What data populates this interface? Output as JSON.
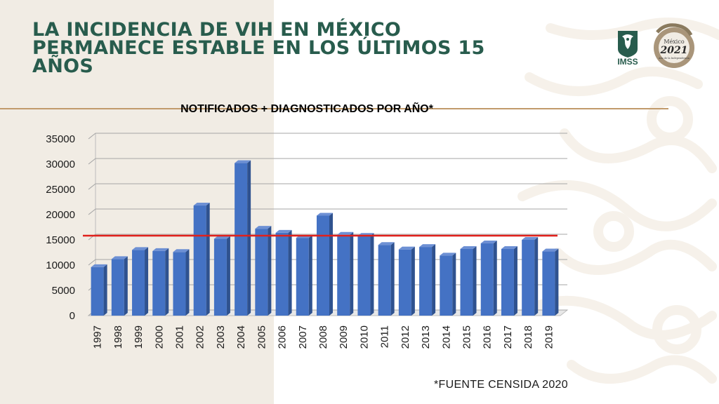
{
  "slide": {
    "title": "LA INCIDENCIA DE VIH EN MÉXICO PERMANECE ESTABLE EN LOS ÚLTIMOS 15 AÑOS",
    "source_note": "*FUENTE CENSIDA 2020",
    "logos": {
      "imss": "IMSS",
      "seal_year": "2021",
      "seal_text": "México",
      "seal_sub": "Año de la Independencia"
    }
  },
  "colors": {
    "title": "#285c4d",
    "bar": "#4472c4",
    "bar_side": "#2f528f",
    "bar_top": "#6d90d4",
    "reference_line": "#e0201b",
    "divider": "#c19a6b",
    "left_panel": "#f1ece4"
  },
  "chart_data": {
    "type": "bar",
    "title": "NOTIFICADOS + DIAGNOSTICADOS POR AÑO*",
    "xlabel": "",
    "ylabel": "",
    "ylim": [
      0,
      35000
    ],
    "yticks": [
      0,
      5000,
      10000,
      15000,
      20000,
      25000,
      30000,
      35000
    ],
    "categories": [
      "1997",
      "1998",
      "1999",
      "2000",
      "2001",
      "2002",
      "2003",
      "2004",
      "2005",
      "2006",
      "2007",
      "2008",
      "2009",
      "2010",
      "2011",
      "2012",
      "2013",
      "2014",
      "2015",
      "2016",
      "2017",
      "2018",
      "2019"
    ],
    "values": [
      9600,
      11200,
      13000,
      12800,
      12600,
      21800,
      15200,
      30200,
      17200,
      16400,
      15400,
      19800,
      16000,
      15800,
      14000,
      13100,
      13600,
      11900,
      13200,
      14300,
      13200,
      15000,
      12700
    ],
    "reference_line": 15000,
    "grid": true,
    "legend": "none",
    "style": "3d-bar"
  }
}
